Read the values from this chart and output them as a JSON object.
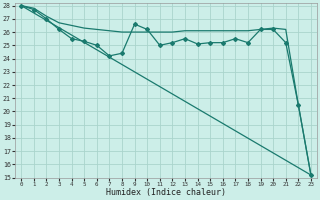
{
  "xlabel": "Humidex (Indice chaleur)",
  "background_color": "#cceee8",
  "grid_color": "#aad4cc",
  "line_color": "#1a7a6e",
  "xlim": [
    -0.5,
    23.5
  ],
  "ylim": [
    15,
    28.2
  ],
  "xticks": [
    0,
    1,
    2,
    3,
    4,
    5,
    6,
    7,
    8,
    9,
    10,
    11,
    12,
    13,
    14,
    15,
    16,
    17,
    18,
    19,
    20,
    21,
    22,
    23
  ],
  "yticks": [
    15,
    16,
    17,
    18,
    19,
    20,
    21,
    22,
    23,
    24,
    25,
    26,
    27,
    28
  ],
  "line1_x": [
    0,
    1,
    2,
    3,
    4,
    5,
    6,
    7,
    8,
    9,
    10,
    11,
    12,
    13,
    14,
    15,
    16,
    17,
    18,
    19,
    20,
    21,
    22,
    23
  ],
  "line1_y": [
    28.0,
    27.8,
    27.2,
    26.7,
    26.5,
    26.3,
    26.2,
    26.1,
    26.0,
    26.0,
    26.0,
    26.0,
    26.0,
    26.1,
    26.1,
    26.1,
    26.1,
    26.1,
    26.1,
    26.2,
    26.3,
    26.2,
    20.5,
    15.2
  ],
  "line2_x": [
    0,
    1,
    2,
    3,
    4,
    5,
    6,
    7,
    8,
    9,
    10,
    11,
    12,
    13,
    14,
    15,
    16,
    17,
    18,
    19,
    20,
    21,
    22,
    23
  ],
  "line2_y": [
    28.0,
    27.7,
    27.0,
    26.2,
    25.5,
    25.3,
    25.0,
    24.2,
    24.4,
    26.6,
    26.2,
    25.0,
    25.2,
    25.5,
    25.1,
    25.2,
    25.2,
    25.5,
    25.2,
    26.2,
    26.2,
    25.2,
    20.5,
    15.2
  ],
  "line3_x": [
    0,
    23
  ],
  "line3_y": [
    28.0,
    15.2
  ],
  "marker2_x": [
    0,
    1,
    2,
    3,
    4,
    5,
    6,
    7,
    8,
    9,
    10,
    11,
    12,
    13,
    14,
    15,
    16,
    17,
    18,
    19,
    20,
    21,
    22,
    23
  ],
  "marker2_y": [
    28.0,
    27.7,
    27.0,
    26.2,
    25.5,
    25.3,
    25.0,
    24.2,
    24.4,
    26.6,
    26.2,
    25.0,
    25.2,
    25.5,
    25.1,
    25.2,
    25.2,
    25.5,
    25.2,
    26.2,
    26.2,
    25.2,
    20.5,
    15.2
  ]
}
